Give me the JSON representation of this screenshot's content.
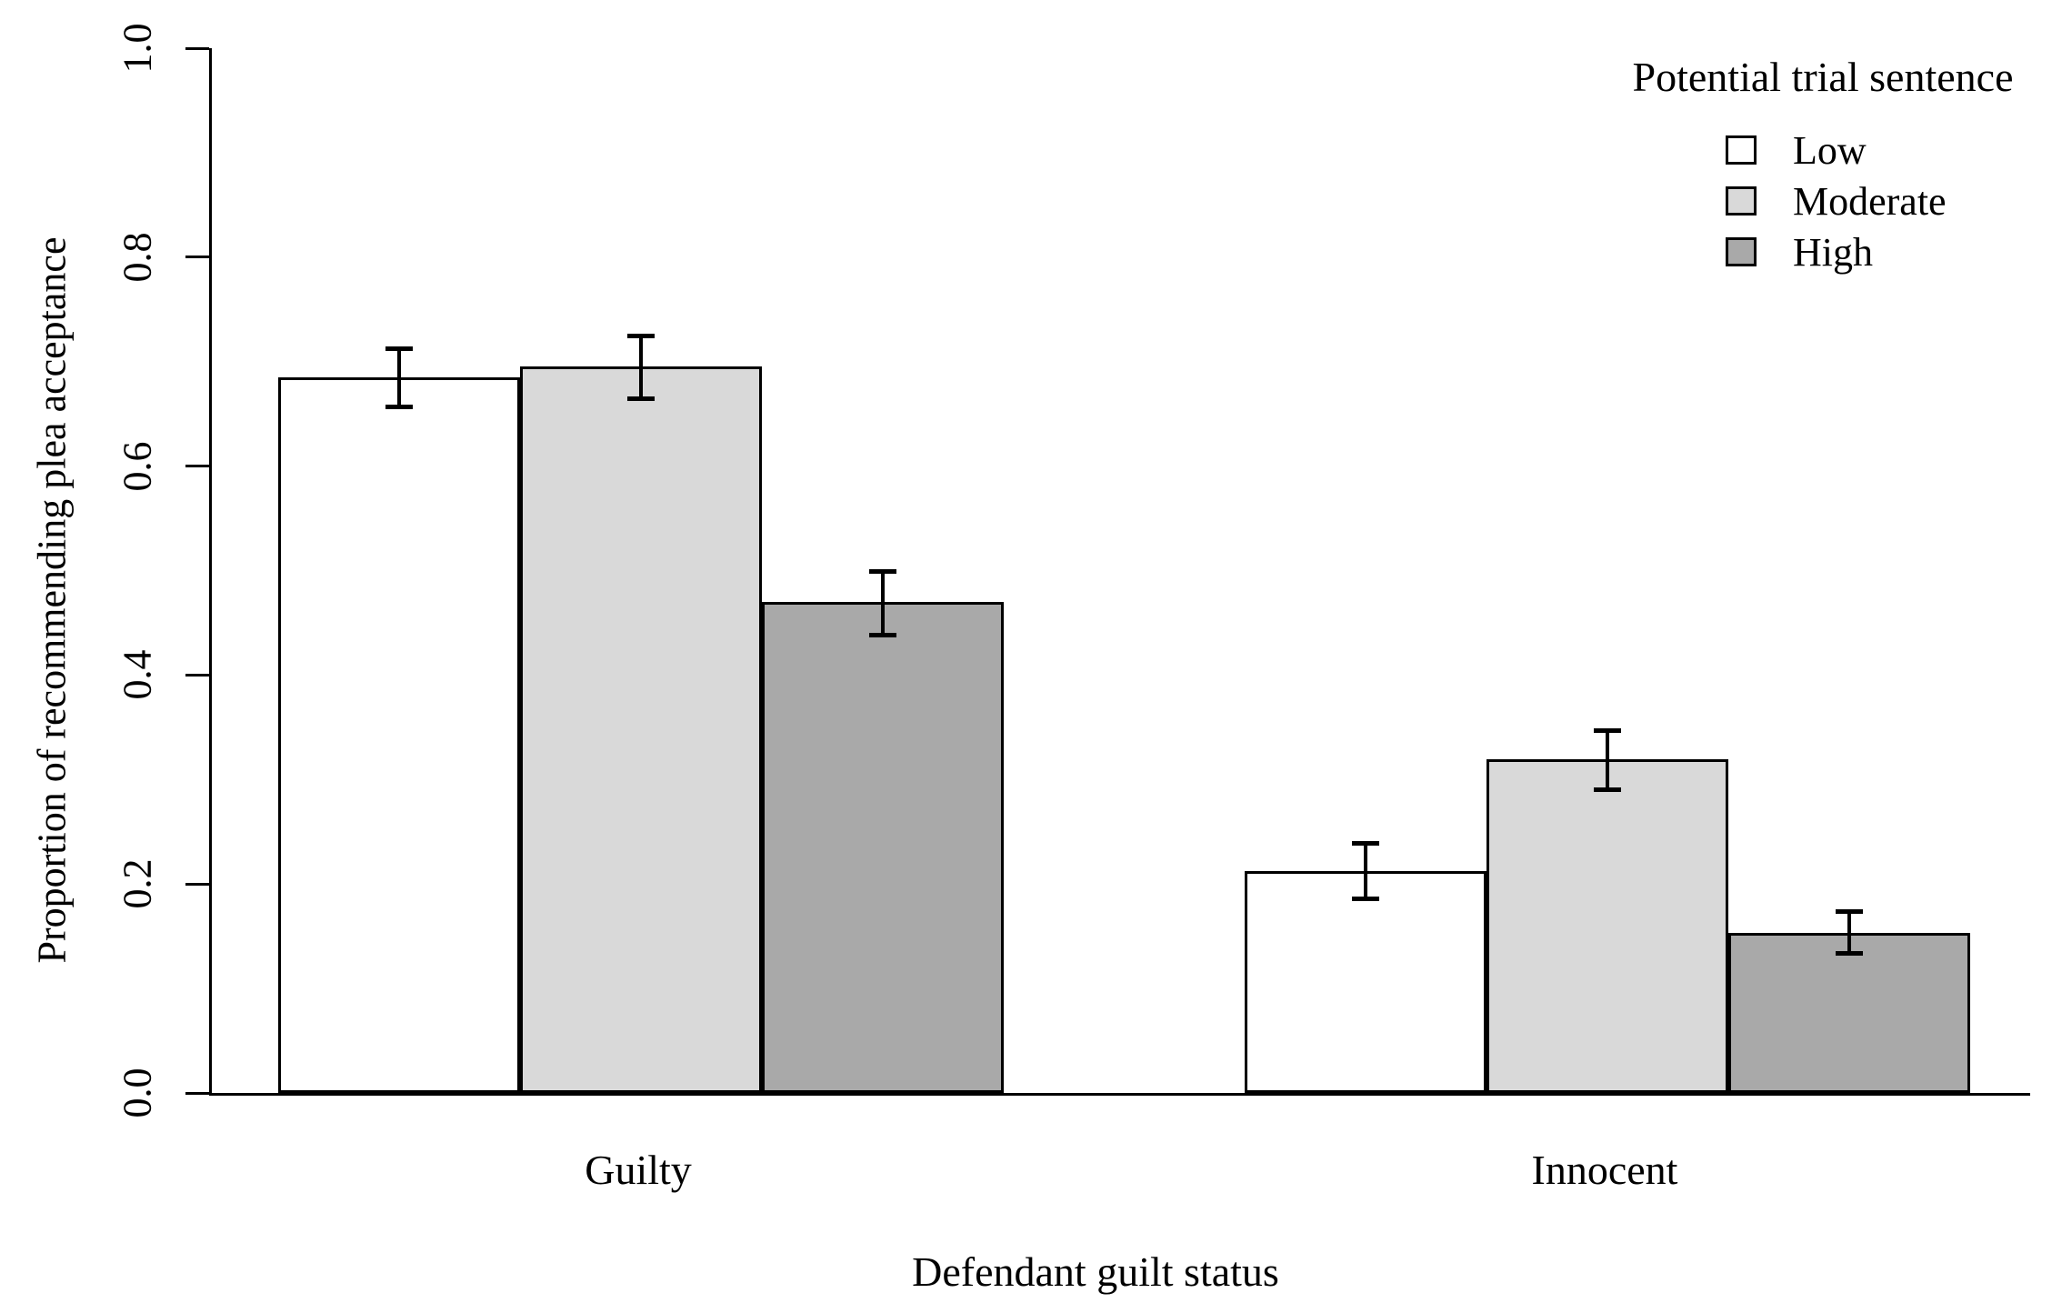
{
  "chart_data": {
    "type": "bar",
    "title": "",
    "xlabel": "Defendant guilt status",
    "ylabel": "Proportion of recommending plea acceptance",
    "categories": [
      "Guilty",
      "Innocent"
    ],
    "series": [
      {
        "name": "Low",
        "color": "#ffffff",
        "values": [
          0.685,
          0.212
        ],
        "ci_low": [
          0.657,
          0.186
        ],
        "ci_high": [
          0.713,
          0.239
        ]
      },
      {
        "name": "Moderate",
        "color": "#d9d9d9",
        "values": [
          0.695,
          0.319
        ],
        "ci_low": [
          0.665,
          0.291
        ],
        "ci_high": [
          0.725,
          0.347
        ]
      },
      {
        "name": "High",
        "color": "#a9a9a9",
        "values": [
          0.47,
          0.153
        ],
        "ci_low": [
          0.439,
          0.134
        ],
        "ci_high": [
          0.5,
          0.174
        ]
      }
    ],
    "ylim": [
      0.0,
      1.0
    ],
    "yticks": [
      0.0,
      0.2,
      0.4,
      0.6,
      0.8,
      1.0
    ],
    "grid": false,
    "error_bars": true,
    "bar_border_color": "#000000",
    "legend": {
      "title": "Potential trial sentence",
      "position": "top-right",
      "entries": [
        "Low",
        "Moderate",
        "High"
      ]
    }
  }
}
